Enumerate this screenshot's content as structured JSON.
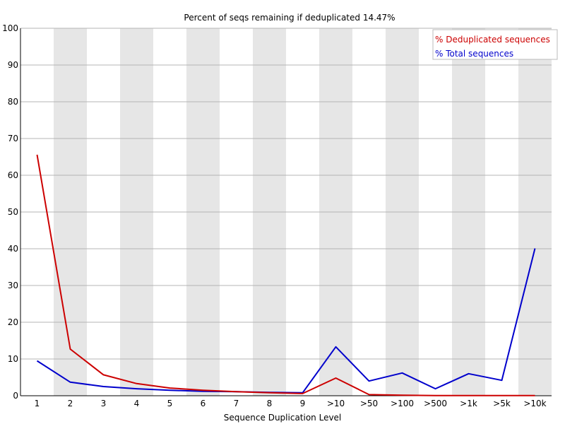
{
  "chart_data": {
    "type": "line",
    "title": "Percent of seqs remaining if deduplicated 14.47%",
    "xlabel": "Sequence Duplication Level",
    "ylabel": "",
    "ylim": [
      0,
      100
    ],
    "yticks": [
      0,
      10,
      20,
      30,
      40,
      50,
      60,
      70,
      80,
      90,
      100
    ],
    "categories": [
      "1",
      "2",
      "3",
      "4",
      "5",
      "6",
      "7",
      "8",
      "9",
      ">10",
      ">50",
      ">100",
      ">500",
      ">1k",
      ">5k",
      ">10k"
    ],
    "grid": true,
    "alternating_column_shading": true,
    "legend_position": "top-right",
    "series": [
      {
        "name": "% Deduplicated sequences",
        "color": "#cc0000",
        "values": [
          65.6,
          12.7,
          5.7,
          3.3,
          2.1,
          1.5,
          1.1,
          0.8,
          0.6,
          4.8,
          0.3,
          0.15,
          0.05,
          0.05,
          0.05,
          0.05
        ]
      },
      {
        "name": "% Total sequences",
        "color": "#0000cc",
        "values": [
          9.5,
          3.7,
          2.5,
          1.9,
          1.5,
          1.2,
          1.1,
          0.9,
          0.8,
          13.3,
          4.0,
          6.2,
          1.9,
          6.0,
          4.2,
          40.1
        ]
      }
    ]
  }
}
